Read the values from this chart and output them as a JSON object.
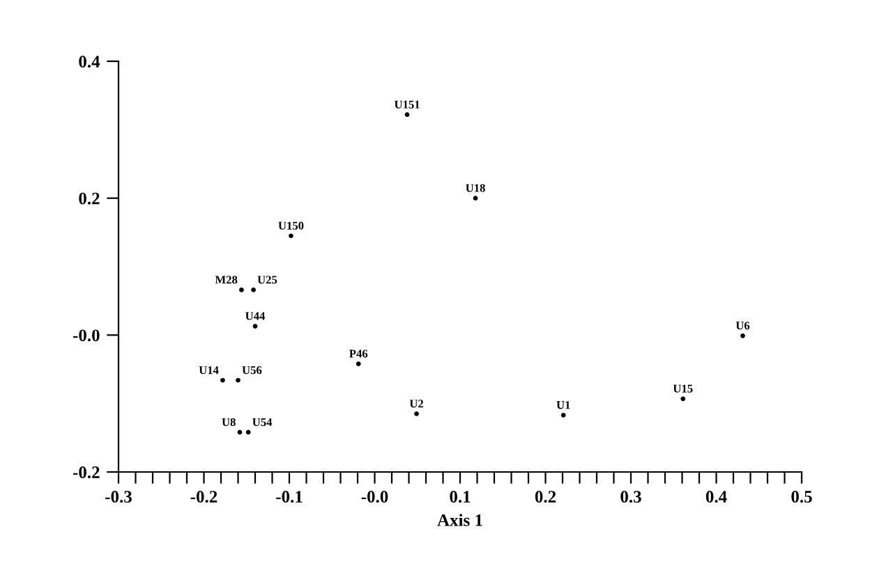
{
  "chart_data": {
    "type": "scatter",
    "xlabel": "Axis 1",
    "marker": "circle",
    "grid": false,
    "xlim": [
      -0.3,
      0.5
    ],
    "ylim": [
      -0.2,
      0.4
    ],
    "xticks": [
      -0.3,
      {
        "value": -0.28,
        "label": null
      },
      {
        "value": -0.26,
        "label": null
      },
      {
        "value": -0.24,
        "label": null
      },
      {
        "value": -0.22,
        "label": null
      },
      -0.2,
      {
        "value": -0.18,
        "label": null
      },
      {
        "value": -0.16,
        "label": null
      },
      {
        "value": -0.14,
        "label": null
      },
      {
        "value": -0.12,
        "label": null
      },
      -0.1,
      {
        "value": -0.08,
        "label": null
      },
      {
        "value": -0.06,
        "label": null
      },
      {
        "value": -0.04,
        "label": null
      },
      {
        "value": -0.02,
        "label": null
      },
      {
        "value": 0,
        "label": "-0.0"
      },
      {
        "value": 0.02,
        "label": null
      },
      {
        "value": 0.04,
        "label": null
      },
      {
        "value": 0.06,
        "label": null
      },
      {
        "value": 0.08,
        "label": null
      },
      0.1,
      {
        "value": 0.12,
        "label": null
      },
      {
        "value": 0.14,
        "label": null
      },
      {
        "value": 0.16,
        "label": null
      },
      {
        "value": 0.18,
        "label": null
      },
      0.2,
      {
        "value": 0.22,
        "label": null
      },
      {
        "value": 0.24,
        "label": null
      },
      {
        "value": 0.26,
        "label": null
      },
      {
        "value": 0.28,
        "label": null
      },
      0.3,
      {
        "value": 0.32,
        "label": null
      },
      {
        "value": 0.34,
        "label": null
      },
      {
        "value": 0.36,
        "label": null
      },
      {
        "value": 0.38,
        "label": null
      },
      0.4,
      {
        "value": 0.42,
        "label": null
      },
      {
        "value": 0.44,
        "label": null
      },
      {
        "value": 0.46,
        "label": null
      },
      {
        "value": 0.48,
        "label": null
      },
      0.5
    ],
    "yticks": [
      -0.2,
      {
        "value": 0,
        "label": "-0.0"
      },
      0.2,
      0.4
    ],
    "series": [
      {
        "color": "#000000",
        "x": [
          0.038,
          0.118,
          -0.098,
          -0.156,
          -0.142,
          -0.14,
          -0.019,
          -0.178,
          -0.16,
          -0.158,
          -0.148,
          0.049,
          0.221,
          0.361,
          0.431
        ],
        "values": [
          0.322,
          0.2,
          0.145,
          0.066,
          0.066,
          0.013,
          -0.042,
          -0.066,
          -0.066,
          -0.142,
          -0.142,
          -0.115,
          -0.117,
          -0.093,
          -0.001
        ],
        "value_labels": [
          "U151",
          "U18",
          "U150",
          "M28",
          "U25",
          "U44",
          "P46",
          "U14",
          "U56",
          "U8",
          "U54",
          "U2",
          "U1",
          "U15",
          "U6"
        ]
      }
    ]
  }
}
